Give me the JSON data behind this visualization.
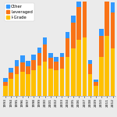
{
  "years": [
    "1993",
    "1994",
    "1995",
    "1996",
    "1997",
    "1998",
    "1999",
    "2000",
    "2001",
    "2002",
    "2003",
    "2004",
    "2005",
    "2006",
    "2007",
    "2008",
    "2009",
    "2010",
    "2011",
    "2012"
  ],
  "i_grade": [
    1.2,
    2.0,
    2.5,
    2.8,
    2.5,
    3.0,
    3.5,
    4.0,
    3.2,
    3.0,
    3.2,
    4.5,
    5.5,
    6.5,
    6.8,
    2.5,
    1.2,
    4.5,
    7.0,
    5.5
  ],
  "leveraged": [
    0.4,
    0.7,
    0.9,
    1.1,
    0.9,
    1.2,
    1.5,
    2.0,
    1.2,
    1.0,
    1.3,
    2.2,
    3.0,
    3.8,
    4.2,
    1.2,
    0.4,
    2.5,
    4.5,
    4.2
  ],
  "other": [
    0.5,
    0.6,
    0.8,
    0.8,
    0.7,
    0.6,
    0.6,
    0.8,
    0.6,
    0.5,
    0.5,
    0.7,
    0.8,
    1.0,
    1.1,
    0.5,
    0.3,
    0.8,
    1.8,
    1.2
  ],
  "color_igrade": "#FFC000",
  "color_leveraged": "#F97316",
  "color_other": "#3399FF",
  "bg_color": "#EBEBEB",
  "legend_labels": [
    "Other",
    "Leveraged",
    "I-Grade"
  ],
  "legend_colors": [
    "#3399FF",
    "#F97316",
    "#FFC000"
  ]
}
